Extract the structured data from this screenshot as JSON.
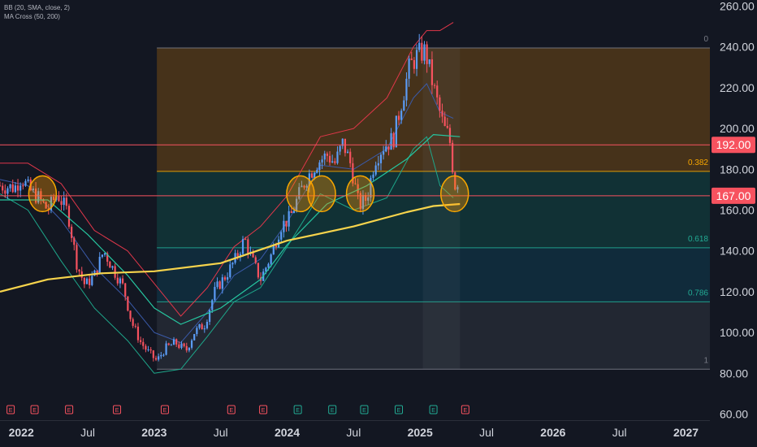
{
  "indicators": [
    "BB (20, SMA, close, 2)",
    "MA Cross (50, 200)"
  ],
  "chart_data": {
    "type": "candlestick",
    "title": "",
    "y_axis": {
      "ticks": [
        260,
        240,
        220,
        200,
        180,
        160,
        140,
        120,
        100,
        80,
        60
      ],
      "labels": [
        "260.00",
        "240.00",
        "220.00",
        "200.00",
        "180.00",
        "160.00",
        "140.00",
        "120.00",
        "100.00",
        "80.00",
        "60.00"
      ],
      "range": [
        57,
        263
      ]
    },
    "x_axis": {
      "labels": [
        {
          "text": "2022",
          "t": 2022.0,
          "bold": true
        },
        {
          "text": "Jul",
          "t": 2022.5,
          "bold": false
        },
        {
          "text": "2023",
          "t": 2023.0,
          "bold": true
        },
        {
          "text": "Jul",
          "t": 2023.5,
          "bold": false
        },
        {
          "text": "2024",
          "t": 2024.0,
          "bold": true
        },
        {
          "text": "Jul",
          "t": 2024.5,
          "bold": false
        },
        {
          "text": "2025",
          "t": 2025.0,
          "bold": true
        },
        {
          "text": "Jul",
          "t": 2025.5,
          "bold": false
        },
        {
          "text": "2026",
          "t": 2026.0,
          "bold": true
        },
        {
          "text": "Jul",
          "t": 2026.5,
          "bold": false
        },
        {
          "text": "2027",
          "t": 2027.0,
          "bold": true
        }
      ],
      "range": [
        2021.84,
        2027.18
      ]
    },
    "close_path": [
      [
        2021.84,
        172
      ],
      [
        2021.95,
        171
      ],
      [
        2022.0,
        176
      ],
      [
        2022.06,
        170
      ],
      [
        2022.13,
        166
      ],
      [
        2022.2,
        160
      ],
      [
        2022.27,
        168
      ],
      [
        2022.35,
        159
      ],
      [
        2022.42,
        133
      ],
      [
        2022.48,
        123
      ],
      [
        2022.55,
        128
      ],
      [
        2022.62,
        140
      ],
      [
        2022.7,
        130
      ],
      [
        2022.77,
        122
      ],
      [
        2022.83,
        105
      ],
      [
        2022.9,
        95
      ],
      [
        2022.96,
        90
      ],
      [
        2023.02,
        86
      ],
      [
        2023.08,
        92
      ],
      [
        2023.16,
        95
      ],
      [
        2023.24,
        91
      ],
      [
        2023.3,
        100
      ],
      [
        2023.38,
        104
      ],
      [
        2023.46,
        121
      ],
      [
        2023.54,
        128
      ],
      [
        2023.62,
        137
      ],
      [
        2023.68,
        146
      ],
      [
        2023.74,
        135
      ],
      [
        2023.8,
        126
      ],
      [
        2023.88,
        138
      ],
      [
        2023.95,
        152
      ],
      [
        2024.02,
        156
      ],
      [
        2024.08,
        166
      ],
      [
        2024.14,
        175
      ],
      [
        2024.22,
        183
      ],
      [
        2024.3,
        187
      ],
      [
        2024.36,
        183
      ],
      [
        2024.42,
        193
      ],
      [
        2024.48,
        182
      ],
      [
        2024.54,
        162
      ],
      [
        2024.6,
        166
      ],
      [
        2024.66,
        185
      ],
      [
        2024.72,
        191
      ],
      [
        2024.8,
        195
      ],
      [
        2024.86,
        213
      ],
      [
        2024.92,
        230
      ],
      [
        2024.98,
        236
      ],
      [
        2025.04,
        238
      ],
      [
        2025.08,
        226
      ],
      [
        2025.14,
        210
      ],
      [
        2025.18,
        200
      ],
      [
        2025.22,
        196
      ],
      [
        2025.26,
        172
      ],
      [
        2025.3,
        176
      ]
    ],
    "horizontal_levels": [
      {
        "price": 192.0,
        "label": "192.00",
        "color": "#f7525f"
      },
      {
        "price": 167.0,
        "label": "167.00",
        "color": "#f7525f"
      }
    ],
    "fib_retracement": {
      "t_start": 2023.02,
      "t_end": 2025.3,
      "levels": [
        {
          "ratio": 0,
          "label": "0",
          "price": 239.5,
          "color": "#787b86"
        },
        {
          "ratio": 0.382,
          "label": "0.382",
          "price": 179.0,
          "color": "#f7a600"
        },
        {
          "ratio": 0.618,
          "label": "0.618",
          "price": 141.5,
          "color": "#22ab94"
        },
        {
          "ratio": 0.786,
          "label": "0.786",
          "price": 115.0,
          "color": "#22ab94"
        },
        {
          "ratio": 1,
          "label": "1",
          "price": 82.0,
          "color": "#787b86"
        }
      ]
    },
    "ma_slow_path": [
      [
        2021.84,
        120
      ],
      [
        2022.2,
        126
      ],
      [
        2022.6,
        129
      ],
      [
        2023.0,
        130
      ],
      [
        2023.5,
        134
      ],
      [
        2024.0,
        145
      ],
      [
        2024.5,
        152
      ],
      [
        2024.9,
        159
      ],
      [
        2025.1,
        162
      ],
      [
        2025.3,
        163
      ]
    ],
    "ma_fast_path": [
      [
        2021.84,
        165
      ],
      [
        2022.2,
        165
      ],
      [
        2022.5,
        148
      ],
      [
        2022.8,
        128
      ],
      [
        2023.0,
        112
      ],
      [
        2023.2,
        104
      ],
      [
        2023.5,
        112
      ],
      [
        2023.8,
        126
      ],
      [
        2024.0,
        143
      ],
      [
        2024.3,
        163
      ],
      [
        2024.6,
        172
      ],
      [
        2024.9,
        185
      ],
      [
        2025.1,
        197
      ],
      [
        2025.3,
        196
      ]
    ],
    "bb_upper_path": [
      [
        2021.84,
        183
      ],
      [
        2022.05,
        183
      ],
      [
        2022.3,
        173
      ],
      [
        2022.55,
        150
      ],
      [
        2022.8,
        140
      ],
      [
        2023.0,
        124
      ],
      [
        2023.2,
        108
      ],
      [
        2023.4,
        122
      ],
      [
        2023.6,
        142
      ],
      [
        2023.8,
        152
      ],
      [
        2024.0,
        167
      ],
      [
        2024.25,
        196
      ],
      [
        2024.5,
        200
      ],
      [
        2024.75,
        215
      ],
      [
        2024.95,
        240
      ],
      [
        2025.05,
        248
      ],
      [
        2025.15,
        248
      ],
      [
        2025.25,
        252
      ]
    ],
    "bb_lower_path": [
      [
        2021.84,
        168
      ],
      [
        2022.05,
        160
      ],
      [
        2022.3,
        135
      ],
      [
        2022.55,
        112
      ],
      [
        2022.8,
        96
      ],
      [
        2023.0,
        80
      ],
      [
        2023.2,
        82
      ],
      [
        2023.4,
        98
      ],
      [
        2023.6,
        115
      ],
      [
        2023.8,
        122
      ],
      [
        2024.0,
        142
      ],
      [
        2024.25,
        168
      ],
      [
        2024.5,
        160
      ],
      [
        2024.75,
        166
      ],
      [
        2024.95,
        190
      ],
      [
        2025.05,
        196
      ],
      [
        2025.15,
        172
      ],
      [
        2025.25,
        166
      ]
    ],
    "bb_basis_path": [
      [
        2021.84,
        175
      ],
      [
        2022.05,
        172
      ],
      [
        2022.3,
        155
      ],
      [
        2022.55,
        132
      ],
      [
        2022.8,
        116
      ],
      [
        2023.0,
        100
      ],
      [
        2023.2,
        95
      ],
      [
        2023.4,
        110
      ],
      [
        2023.6,
        128
      ],
      [
        2023.8,
        136
      ],
      [
        2024.0,
        154
      ],
      [
        2024.25,
        182
      ],
      [
        2024.5,
        180
      ],
      [
        2024.75,
        190
      ],
      [
        2024.95,
        215
      ],
      [
        2025.05,
        222
      ],
      [
        2025.15,
        208
      ],
      [
        2025.25,
        205
      ]
    ],
    "circle_annotations": [
      {
        "t": 2022.16,
        "price": 168
      },
      {
        "t": 2024.1,
        "price": 168
      },
      {
        "t": 2024.26,
        "price": 168
      },
      {
        "t": 2024.55,
        "price": 168
      },
      {
        "t": 2025.26,
        "price": 168
      }
    ],
    "earnings_markers": [
      {
        "t": 2021.92,
        "type": "E"
      },
      {
        "t": 2022.1,
        "type": "E"
      },
      {
        "t": 2022.36,
        "type": "E"
      },
      {
        "t": 2022.72,
        "type": "E"
      },
      {
        "t": 2023.08,
        "type": "E"
      },
      {
        "t": 2023.58,
        "type": "E"
      },
      {
        "t": 2023.82,
        "type": "E"
      },
      {
        "t": 2024.08,
        "type": "E"
      },
      {
        "t": 2024.34,
        "type": "E"
      },
      {
        "t": 2024.58,
        "type": "E"
      },
      {
        "t": 2024.84,
        "type": "E"
      },
      {
        "t": 2025.1,
        "type": "E"
      },
      {
        "t": 2025.34,
        "type": "E"
      }
    ],
    "colors": {
      "up": "#5b9cf6",
      "down": "#f7525f",
      "ma_fast": "#26c6a0",
      "ma_slow": "#f7d44c",
      "bb_upper": "#e0374a",
      "bb_lower": "#1ea68a",
      "bb_basis": "#3a5aa8"
    }
  }
}
